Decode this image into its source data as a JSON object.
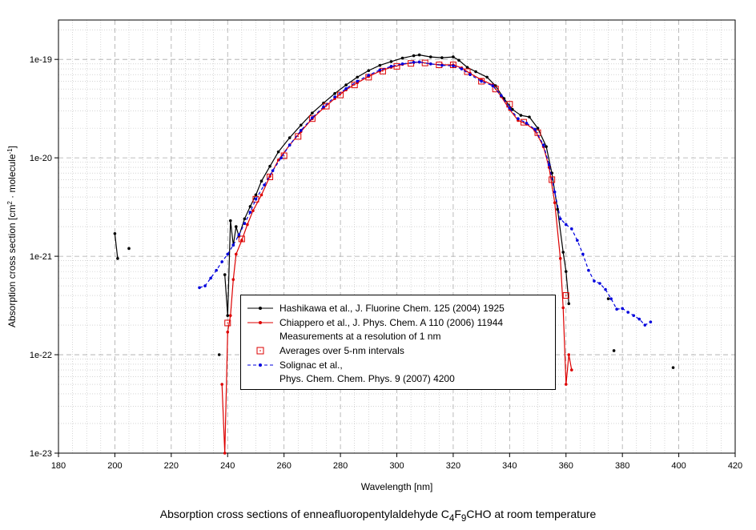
{
  "chart_data": {
    "type": "line",
    "title": "Absorption cross sections of enneafluoropentylaldehyde C4F9CHO at room temperature",
    "caption_parts": [
      "Absorption cross sections of enneafluoropentylaldehyde C",
      "4",
      "F",
      "9",
      "CHO at room temperature"
    ],
    "xlabel": "Wavelength [nm]",
    "ylabel_parts": [
      "Absorption cross section [cm",
      "2",
      " · molecule",
      "-1",
      "]"
    ],
    "xlim": [
      180,
      420
    ],
    "ylim_log10": [
      -23,
      -18.6
    ],
    "yscale": "log",
    "x_ticks": [
      "180",
      "200",
      "220",
      "240",
      "260",
      "280",
      "300",
      "320",
      "340",
      "360",
      "380",
      "400",
      "420"
    ],
    "y_ticks": [
      "1e-23",
      "1e-22",
      "1e-21",
      "1e-20",
      "1e-19"
    ],
    "grid": true,
    "series": [
      {
        "name": "Hashikawa et al., J. Fluorine Chem. 125 (2004) 1925",
        "color": "#000000",
        "marker": "dot",
        "segments": [
          [
            [
              200,
              1.7e-21
            ],
            [
              201,
              9.5e-22
            ]
          ],
          [
            [
              205,
              1.2e-21
            ]
          ],
          [
            [
              237,
              1e-22
            ]
          ],
          [
            [
              239,
              6.5e-22
            ],
            [
              240,
              2.5e-22
            ],
            [
              241,
              2.3e-21
            ],
            [
              242,
              1.3e-21
            ],
            [
              243,
              2e-21
            ],
            [
              244,
              1.6e-21
            ],
            [
              246,
              2.4e-21
            ],
            [
              248,
              3.2e-21
            ],
            [
              250,
              4.2e-21
            ],
            [
              252,
              5.8e-21
            ],
            [
              255,
              8.2e-21
            ],
            [
              258,
              1.15e-20
            ],
            [
              262,
              1.6e-20
            ],
            [
              266,
              2.15e-20
            ],
            [
              270,
              2.85e-20
            ],
            [
              274,
              3.6e-20
            ],
            [
              278,
              4.5e-20
            ],
            [
              282,
              5.5e-20
            ],
            [
              286,
              6.6e-20
            ],
            [
              290,
              7.7e-20
            ],
            [
              294,
              8.7e-20
            ],
            [
              298,
              9.5e-20
            ],
            [
              302,
              1.03e-19
            ],
            [
              306,
              1.09e-19
            ],
            [
              308,
              1.11e-19
            ],
            [
              312,
              1.06e-19
            ],
            [
              316,
              1.04e-19
            ],
            [
              320,
              1.06e-19
            ],
            [
              322,
              9.8e-20
            ],
            [
              325,
              8.3e-20
            ],
            [
              328,
              7.5e-20
            ],
            [
              332,
              6.6e-20
            ],
            [
              335,
              5.4e-20
            ],
            [
              338,
              4e-20
            ],
            [
              341,
              3.1e-20
            ],
            [
              344,
              2.7e-20
            ],
            [
              347,
              2.6e-20
            ],
            [
              350,
              2e-20
            ],
            [
              353,
              1.3e-20
            ],
            [
              355,
              7e-21
            ],
            [
              357,
              3e-21
            ],
            [
              359,
              1.1e-21
            ],
            [
              360,
              7e-22
            ],
            [
              361,
              3.3e-22
            ]
          ],
          [
            [
              375,
              3.7e-22
            ]
          ],
          [
            [
              377,
              1.1e-22
            ]
          ],
          [
            [
              398,
              7.4e-23
            ]
          ]
        ]
      },
      {
        "name": "Chiappero et al., J. Phys. Chem. A 110 (2006) 11944",
        "name_line2": "Measurements at a resolution of 1 nm",
        "color": "#dd0000",
        "marker": "dot",
        "segments": [
          [
            [
              238,
              5e-23
            ],
            [
              239,
              1e-23
            ],
            [
              240,
              1.7e-22
            ],
            [
              241,
              2.5e-22
            ],
            [
              242,
              5.8e-22
            ],
            [
              243,
              1.05e-21
            ],
            [
              245,
              1.45e-21
            ],
            [
              247,
              2.1e-21
            ],
            [
              249,
              2.9e-21
            ],
            [
              252,
              4.2e-21
            ],
            [
              255,
              6.5e-21
            ],
            [
              258,
              9.5e-21
            ],
            [
              262,
              1.35e-20
            ],
            [
              266,
              1.85e-20
            ],
            [
              270,
              2.5e-20
            ],
            [
              274,
              3.2e-20
            ],
            [
              278,
              4e-20
            ],
            [
              282,
              4.9e-20
            ],
            [
              286,
              5.8e-20
            ],
            [
              290,
              6.7e-20
            ],
            [
              294,
              7.6e-20
            ],
            [
              298,
              8.3e-20
            ],
            [
              302,
              8.9e-20
            ],
            [
              306,
              9.3e-20
            ],
            [
              308,
              9.4e-20
            ],
            [
              312,
              9e-20
            ],
            [
              316,
              8.8e-20
            ],
            [
              320,
              8.8e-20
            ],
            [
              323,
              8.2e-20
            ],
            [
              326,
              7.2e-20
            ],
            [
              330,
              6.2e-20
            ],
            [
              334,
              5.5e-20
            ],
            [
              337,
              4.2e-20
            ],
            [
              340,
              3.1e-20
            ],
            [
              343,
              2.4e-20
            ],
            [
              346,
              2.2e-20
            ],
            [
              349,
              1.9e-20
            ],
            [
              352,
              1.3e-20
            ],
            [
              354,
              8e-21
            ],
            [
              356,
              3.5e-21
            ],
            [
              358,
              9.5e-22
            ],
            [
              359,
              3e-22
            ],
            [
              360,
              5e-23
            ],
            [
              361,
              1e-22
            ],
            [
              362,
              7e-23
            ]
          ]
        ]
      },
      {
        "name": "Averages over 5-nm intervals",
        "color": "#dd0000",
        "marker": "open-square",
        "points": [
          [
            240,
            2.1e-22
          ],
          [
            245,
            1.5e-21
          ],
          [
            250,
            3.8e-21
          ],
          [
            255,
            6.4e-21
          ],
          [
            260,
            1.05e-20
          ],
          [
            265,
            1.65e-20
          ],
          [
            270,
            2.5e-20
          ],
          [
            275,
            3.35e-20
          ],
          [
            280,
            4.35e-20
          ],
          [
            285,
            5.5e-20
          ],
          [
            290,
            6.6e-20
          ],
          [
            295,
            7.6e-20
          ],
          [
            300,
            8.5e-20
          ],
          [
            305,
            9.1e-20
          ],
          [
            310,
            9.2e-20
          ],
          [
            315,
            8.8e-20
          ],
          [
            320,
            8.8e-20
          ],
          [
            325,
            7.5e-20
          ],
          [
            330,
            6e-20
          ],
          [
            335,
            5e-20
          ],
          [
            340,
            3.5e-20
          ],
          [
            345,
            2.3e-20
          ],
          [
            350,
            1.8e-20
          ],
          [
            355,
            6e-21
          ],
          [
            360,
            4e-22
          ]
        ]
      },
      {
        "name": "Solignac et al.,",
        "name_line2": "Phys. Chem. Chem. Phys. 9 (2007) 4200",
        "color": "#0000dd",
        "marker": "dot",
        "line_style": "dashed",
        "segments": [
          [
            [
              230,
              4.8e-22
            ],
            [
              232,
              5e-22
            ],
            [
              234,
              6e-22
            ],
            [
              236,
              7.2e-22
            ],
            [
              238,
              8.8e-22
            ],
            [
              240,
              1.05e-21
            ],
            [
              242,
              1.3e-21
            ],
            [
              244,
              1.65e-21
            ],
            [
              246,
              2.15e-21
            ],
            [
              248,
              2.8e-21
            ],
            [
              250,
              3.8e-21
            ],
            [
              253,
              5.3e-21
            ],
            [
              256,
              7.4e-21
            ],
            [
              259,
              1e-20
            ],
            [
              262,
              1.35e-20
            ],
            [
              266,
              1.9e-20
            ],
            [
              270,
              2.55e-20
            ],
            [
              274,
              3.3e-20
            ],
            [
              278,
              4.15e-20
            ],
            [
              282,
              5.05e-20
            ],
            [
              286,
              6e-20
            ],
            [
              290,
              6.9e-20
            ],
            [
              294,
              7.8e-20
            ],
            [
              298,
              8.5e-20
            ],
            [
              302,
              9e-20
            ],
            [
              306,
              9.35e-20
            ],
            [
              308,
              9.4e-20
            ],
            [
              312,
              9e-20
            ],
            [
              316,
              8.7e-20
            ],
            [
              320,
              8.6e-20
            ],
            [
              323,
              8e-20
            ],
            [
              326,
              7e-20
            ],
            [
              330,
              6e-20
            ],
            [
              334,
              5.4e-20
            ],
            [
              337,
              4.3e-20
            ],
            [
              340,
              3.2e-20
            ],
            [
              343,
              2.5e-20
            ],
            [
              346,
              2.25e-20
            ],
            [
              349,
              1.95e-20
            ],
            [
              352,
              1.35e-20
            ],
            [
              354,
              8.5e-21
            ],
            [
              356,
              4.5e-21
            ],
            [
              358,
              2.4e-21
            ],
            [
              360,
              2.1e-21
            ],
            [
              362,
              1.9e-21
            ],
            [
              364,
              1.45e-21
            ],
            [
              366,
              1.05e-21
            ],
            [
              368,
              7.2e-22
            ],
            [
              370,
              5.6e-22
            ],
            [
              372,
              5.3e-22
            ],
            [
              374,
              4.6e-22
            ],
            [
              376,
              3.7e-22
            ],
            [
              378,
              2.9e-22
            ],
            [
              380,
              2.95e-22
            ],
            [
              382,
              2.7e-22
            ],
            [
              384,
              2.5e-22
            ],
            [
              386,
              2.3e-22
            ],
            [
              388,
              2e-22
            ],
            [
              390,
              2.15e-22
            ]
          ]
        ]
      }
    ],
    "legend_position": "lower-center"
  }
}
